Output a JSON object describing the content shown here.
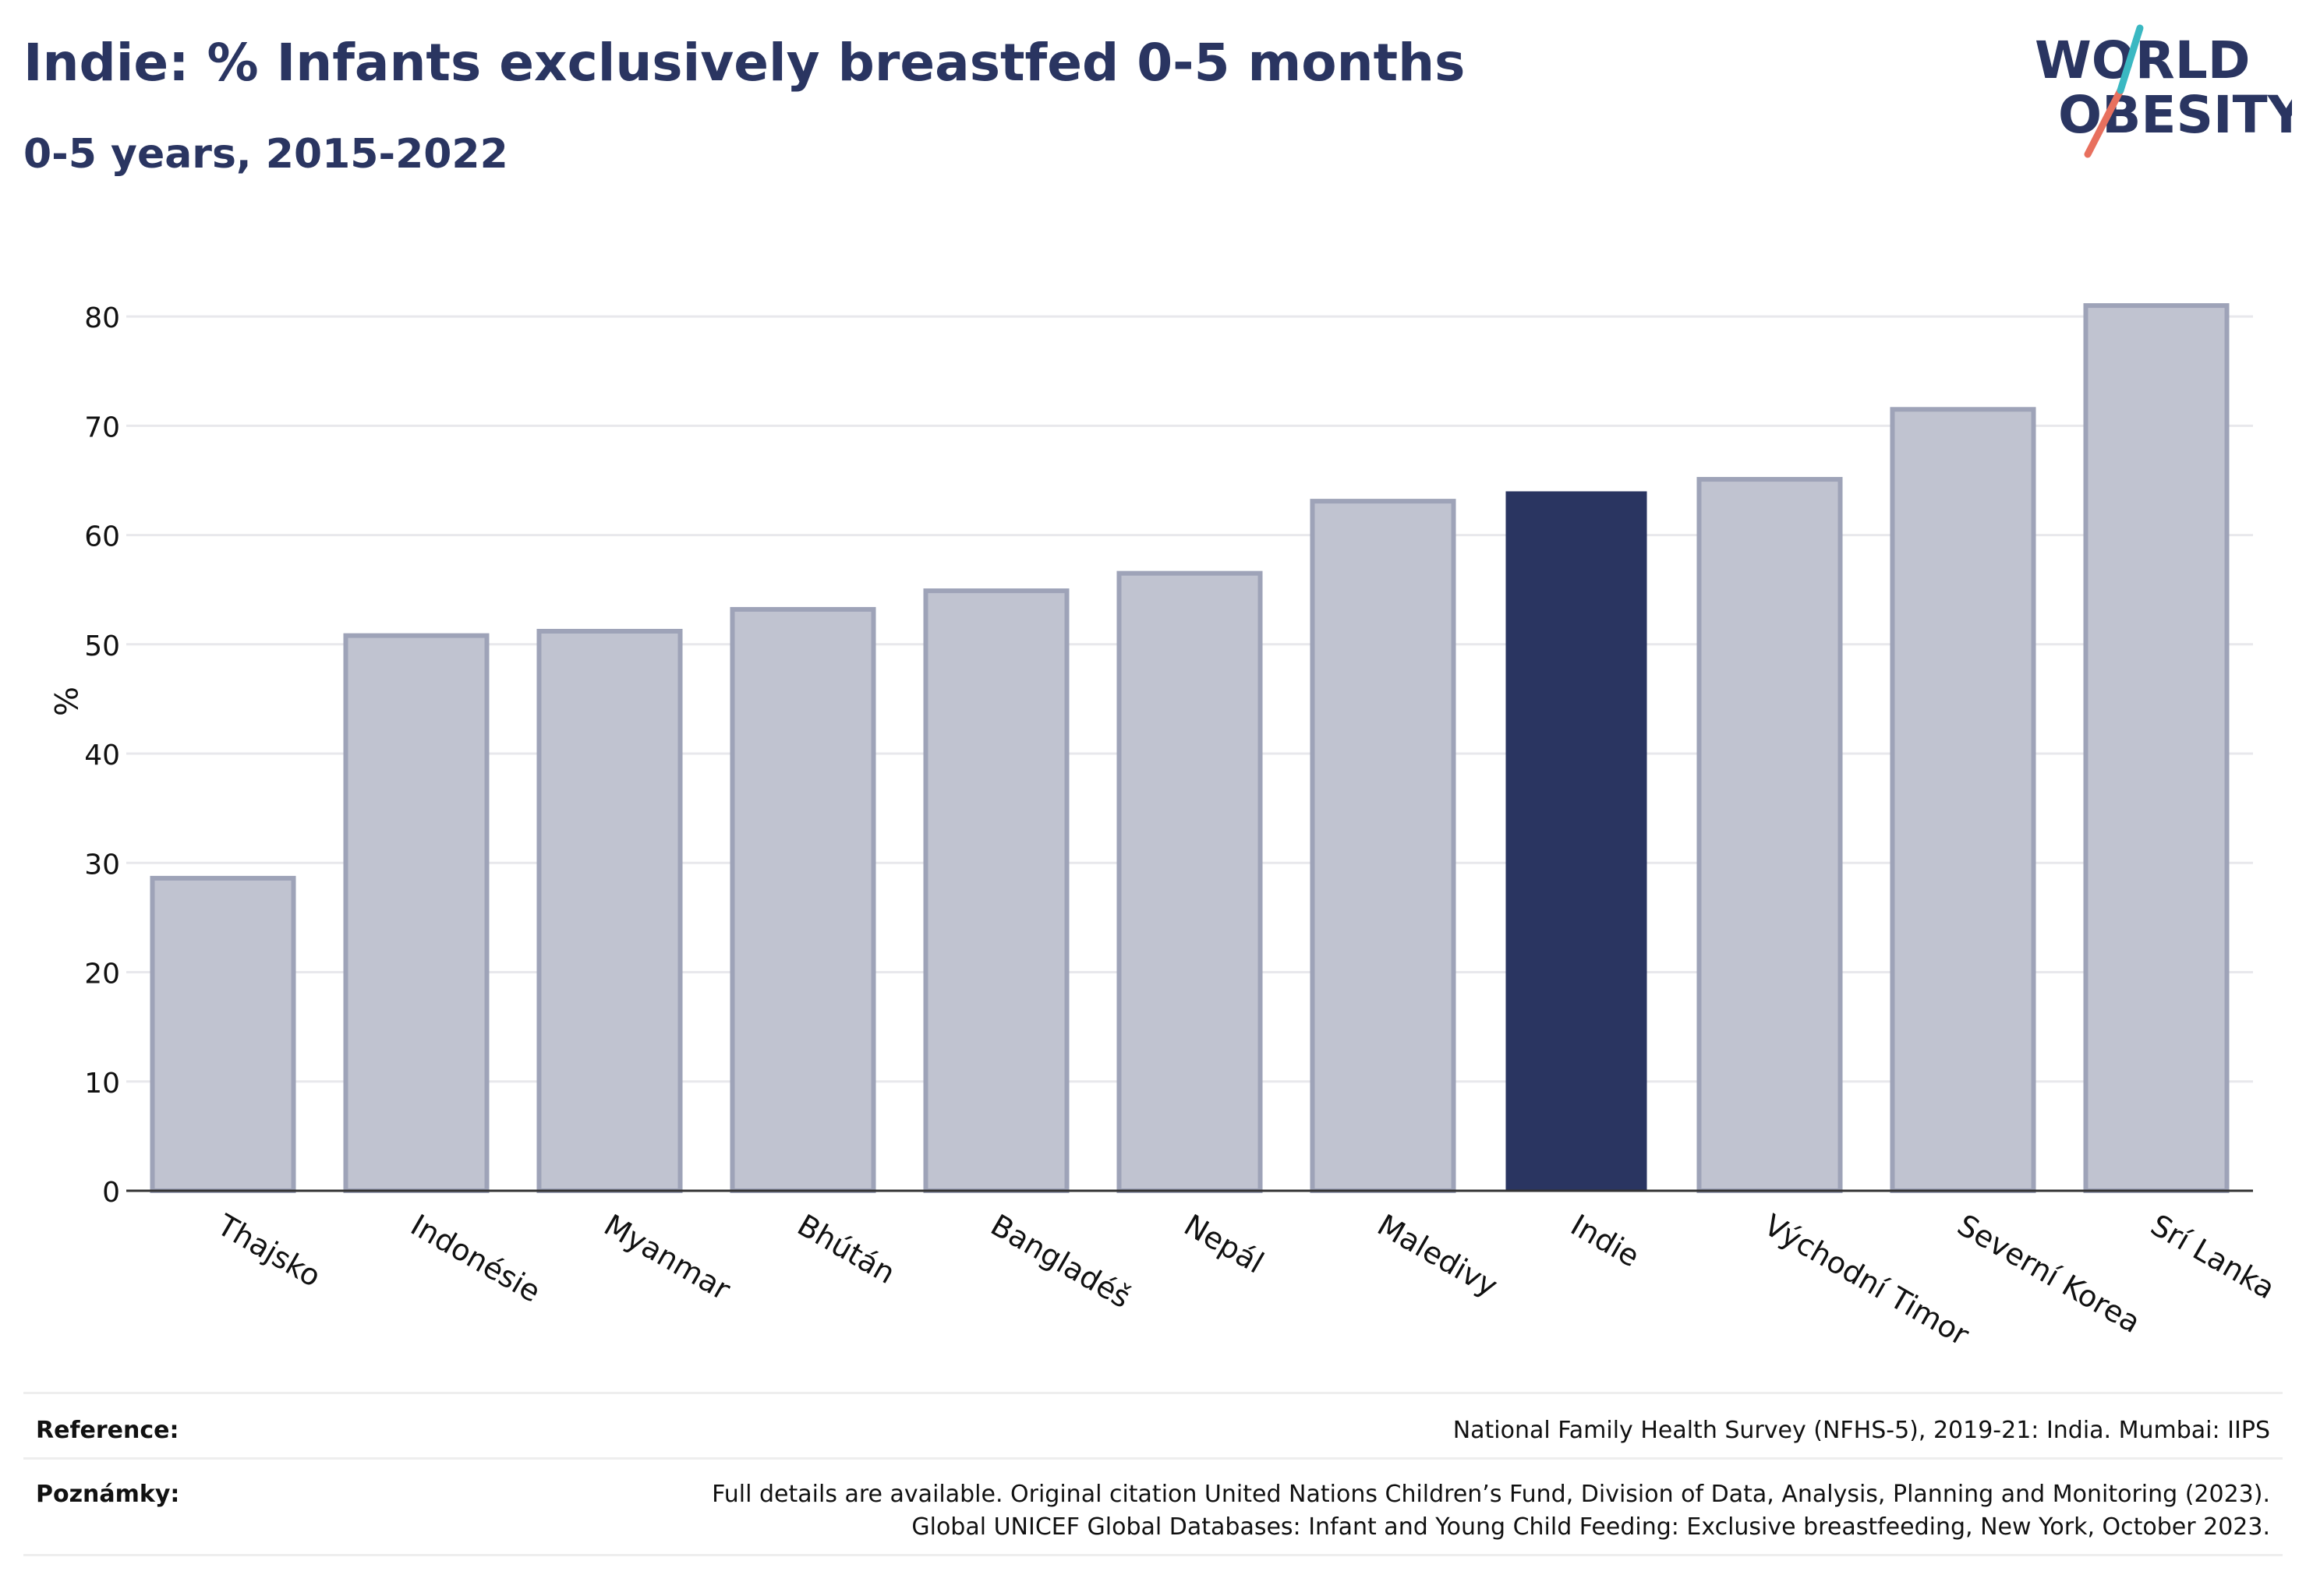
{
  "header": {
    "title": "Indie: % Infants exclusively breastfed 0-5 months",
    "subtitle": "0-5 years, 2015-2022"
  },
  "logo": {
    "line1": "WORLD",
    "line2": "OBESITY"
  },
  "chart_data": {
    "type": "bar",
    "categories": [
      "Thajsko",
      "Indonésie",
      "Myanmar",
      "Bhútán",
      "Bangladéš",
      "Nepál",
      "Maledivy",
      "Indie",
      "Východní Timor",
      "Severní Korea",
      "Srí Lanka"
    ],
    "values": [
      28.6,
      50.8,
      51.2,
      53.2,
      54.9,
      56.5,
      63.1,
      64.0,
      65.1,
      71.5,
      81.0
    ],
    "highlight": "Indie",
    "ylabel": "%",
    "xlabel": "",
    "ylim": [
      0,
      84
    ],
    "yticks": [
      0,
      10,
      20,
      30,
      40,
      50,
      60,
      70,
      80
    ],
    "grid": true,
    "colors": {
      "bar": "#c0c3d0",
      "bar_edge": "#9ea3b8",
      "highlight": "#2a3561"
    }
  },
  "footer": {
    "reference_label": "Reference:",
    "reference_text": "National Family Health Survey (NFHS-5), 2019-21: India. Mumbai: IIPS",
    "notes_label": "Poznámky:",
    "notes_line1": "Full details are available. Original citation United Nations Children’s Fund, Division of Data, Analysis, Planning and Monitoring (2023).",
    "notes_line2": "Global UNICEF Global Databases: Infant and Young Child Feeding: Exclusive breastfeeding, New York, October 2023."
  }
}
